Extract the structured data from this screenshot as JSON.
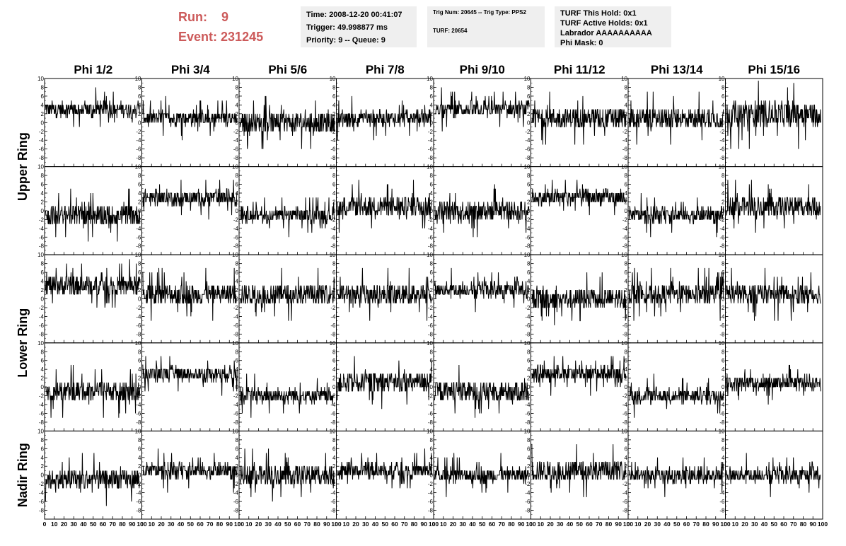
{
  "header": {
    "run_label": "Run:",
    "run_value": "9",
    "event_label": "Event:",
    "event_value": "231245",
    "time": "Time: 2008-12-20 00:41:07",
    "trigger": "Trigger: 49.998877 ms",
    "priority": "Priority: 9 -- Queue: 9",
    "trig_num": "Trig Num: 20645 -- Trig Type: PPS2",
    "turf": "TURF: 20654",
    "turf_hold": "TURF This Hold: 0x1",
    "turf_active": "TURF Active Holds: 0x1",
    "labrador": "Labrador AAAAAAAAAA",
    "phi_mask": "Phi Mask: 0"
  },
  "colors": {
    "header_red": "#cc5a5a",
    "info_bg": "#efefef",
    "trace": "#000000"
  },
  "chart_data": {
    "type": "line",
    "columns": [
      "Phi 1/2",
      "Phi 3/4",
      "Phi 5/6",
      "Phi 7/8",
      "Phi 9/10",
      "Phi 11/12",
      "Phi 13/14",
      "Phi 15/16"
    ],
    "row_groups": [
      {
        "label": "Upper Ring",
        "rows": [
          0,
          1
        ]
      },
      {
        "label": "Lower Ring",
        "rows": [
          2,
          3
        ]
      },
      {
        "label": "Nadir Ring",
        "rows": [
          4
        ]
      }
    ],
    "xlim": [
      0,
      100
    ],
    "ylim": [
      -10,
      10
    ],
    "x_ticks": [
      0,
      10,
      20,
      30,
      40,
      50,
      60,
      70,
      80,
      90,
      100
    ],
    "y_ticks": [
      -8,
      -6,
      -4,
      -2,
      0,
      2,
      4,
      6,
      8,
      10
    ],
    "n_samples": 260,
    "baselines": [
      [
        3,
        1,
        0,
        1,
        3,
        1,
        1,
        2
      ],
      [
        -1,
        3,
        -1,
        1,
        0,
        3,
        -1,
        1
      ],
      [
        3,
        1,
        1,
        1,
        2,
        0,
        1,
        1
      ],
      [
        -1,
        3,
        -2,
        1,
        -1,
        3,
        -2,
        1
      ],
      [
        -1,
        1,
        0,
        1,
        0,
        1,
        0,
        0
      ]
    ],
    "spread": [
      [
        3,
        3,
        4,
        3,
        3,
        4,
        4,
        5
      ],
      [
        4,
        3,
        3,
        4,
        4,
        3,
        3,
        4
      ],
      [
        4,
        4,
        4,
        4,
        3,
        4,
        4,
        4
      ],
      [
        4,
        3,
        3,
        4,
        4,
        3,
        3,
        3
      ],
      [
        4,
        3,
        4,
        3,
        3,
        4,
        3,
        3
      ]
    ]
  }
}
